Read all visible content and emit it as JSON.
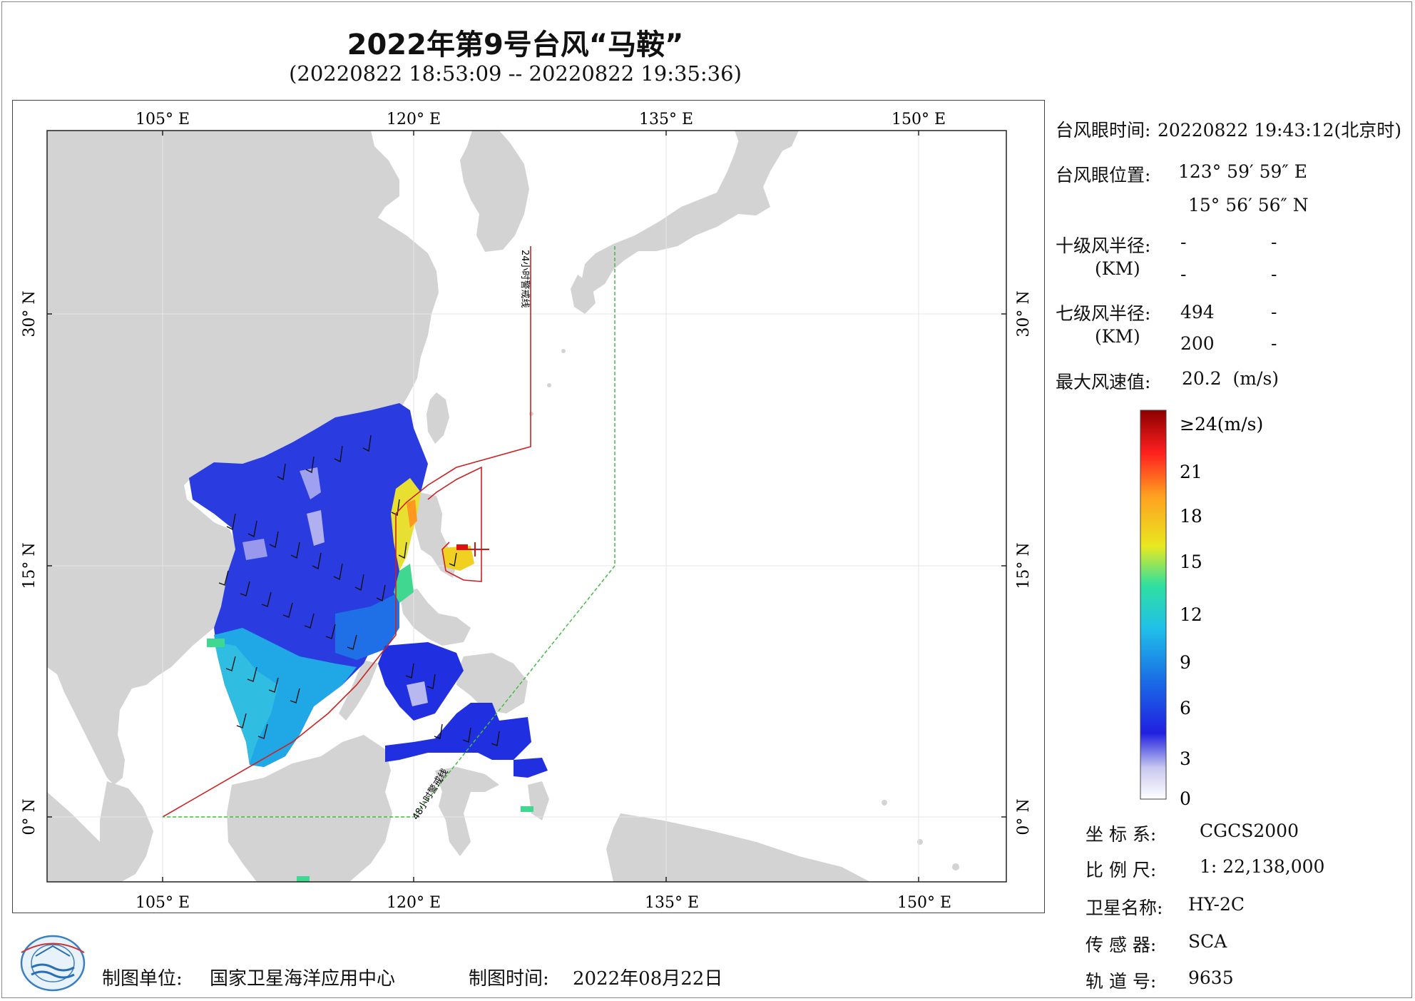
{
  "title": "2022年第9号台风“马鞍”",
  "subtitle": "(20220822 18:53:09 -- 20220822 19:35:36)",
  "map": {
    "top_lon_ticks": [
      "105° E",
      "120° E",
      "135° E",
      "150° E"
    ],
    "bottom_lon_ticks": [
      "105° E",
      "120° E",
      "135° E",
      "150° E"
    ],
    "left_lat_ticks": [
      "30° N",
      "15° N",
      "0° N"
    ],
    "right_lat_ticks": [
      "30° N",
      "15° N",
      "0° N"
    ],
    "warning_24h_label": "24小时警戒线",
    "warning_48h_label": "48小时警戒线",
    "colors": {
      "land": "#d3d3d3",
      "sea": "#ffffff",
      "line_24h": "#cc2222",
      "line_48h": "#44bb44"
    }
  },
  "info": {
    "eye_time_label": "台风眼时间:",
    "eye_time_value": "20220822 19:43:12(北京时)",
    "eye_pos_label": "台风眼位置:",
    "eye_lon": "123° 59′ 59″ E",
    "eye_lat": "15° 56′ 56″ N",
    "r10_label": "十级风半径:",
    "r10_unit": "(KM)",
    "r10_values": [
      "-",
      "-",
      "-",
      "-"
    ],
    "r7_label": "七级风半径:",
    "r7_unit": "(KM)",
    "r7_values": [
      "494",
      "-",
      "200",
      "-"
    ],
    "max_wind_label": "最大风速值:",
    "max_wind_value": "20.2  (m/s)"
  },
  "colorbar": {
    "labels": [
      "≥24(m/s)",
      "21",
      "18",
      "15",
      "12",
      "9",
      "6",
      "3",
      "0"
    ],
    "stops": [
      "#ffffff",
      "#c8c8f0",
      "#2020e0",
      "#1a6ae6",
      "#20c0e8",
      "#30e0a0",
      "#e8e820",
      "#ffa020",
      "#ff2020",
      "#8b0000"
    ]
  },
  "meta": {
    "coord_label": "坐 标 系:",
    "coord_value": "CGCS2000",
    "scale_label": "比 例 尺:",
    "scale_value": "1: 22,138,000",
    "satellite_label": "卫星名称:",
    "satellite_value": "HY-2C",
    "sensor_label": "传 感 器:",
    "sensor_value": "SCA",
    "orbit_label": "轨 道 号:",
    "orbit_value": "9635"
  },
  "footer": {
    "unit_label": "制图单位:",
    "unit_value": "国家卫星海洋应用中心",
    "date_label": "制图时间:",
    "date_value": "2022年08月22日"
  }
}
